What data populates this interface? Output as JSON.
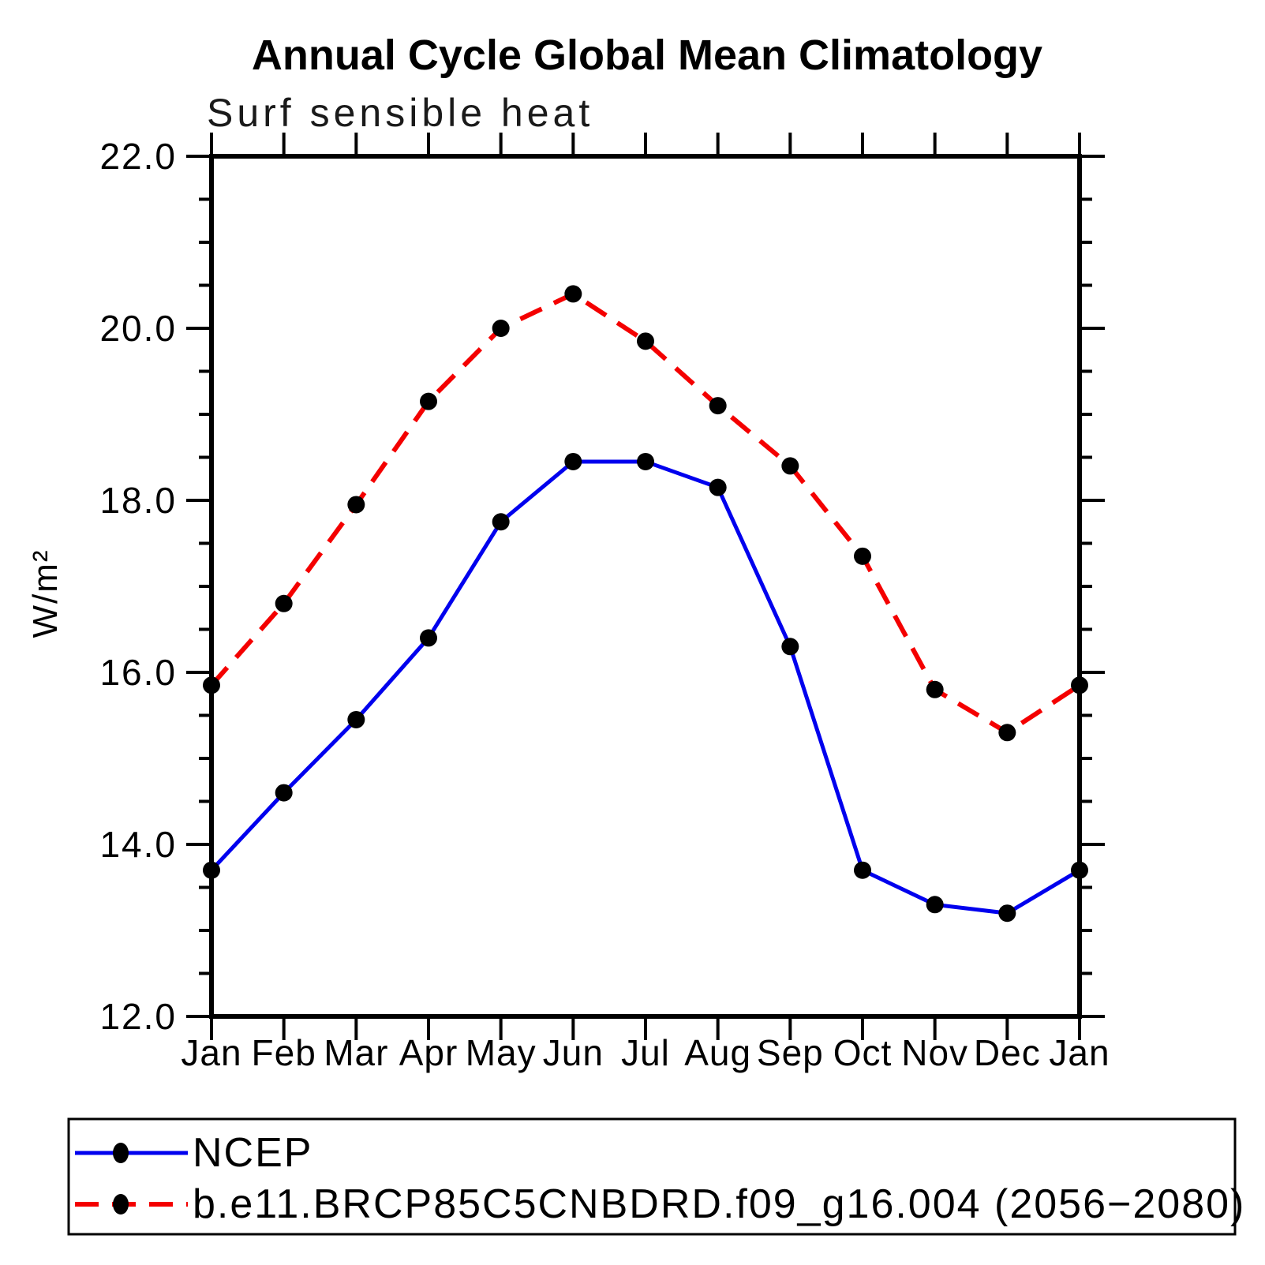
{
  "header": {
    "title": "Annual Cycle Global Mean Climatology",
    "subtitle": "Surf sensible heat"
  },
  "chart_data": {
    "type": "line",
    "title": "Annual Cycle Global Mean Climatology",
    "subtitle": "Surf sensible heat",
    "ylabel": "W/m²",
    "ylim": [
      12.0,
      22.0
    ],
    "ytick_major_interval": 2.0,
    "ytick_minor_interval": 0.5,
    "yticks": [
      {
        "value": 22.0,
        "label": "22.0"
      },
      {
        "value": 20.0,
        "label": "20.0"
      },
      {
        "value": 18.0,
        "label": "18.0"
      },
      {
        "value": 16.0,
        "label": "16.0"
      },
      {
        "value": 14.0,
        "label": "14.0"
      },
      {
        "value": 12.0,
        "label": "12.0"
      }
    ],
    "categories": [
      "Jan",
      "Feb",
      "Mar",
      "Apr",
      "May",
      "Jun",
      "Jul",
      "Aug",
      "Sep",
      "Oct",
      "Nov",
      "Dec",
      "Jan"
    ],
    "grid": "off",
    "legend_position": "bottom",
    "marker_color": "#000000",
    "series": [
      {
        "name": "NCEP",
        "color": "#0000ee",
        "style": "solid",
        "marker": "circle",
        "values": [
          13.7,
          14.6,
          15.45,
          16.4,
          17.75,
          18.45,
          18.45,
          18.15,
          16.3,
          13.7,
          13.3,
          13.2,
          13.7
        ]
      },
      {
        "name": "b.e11.BRCP85C5CNBDRD.f09_g16.004 (2056−2080)",
        "color": "#f40000",
        "style": "dashed",
        "marker": "circle",
        "values": [
          15.85,
          16.8,
          17.95,
          19.15,
          20.0,
          20.4,
          19.85,
          19.1,
          18.4,
          17.35,
          15.8,
          15.3,
          15.85
        ]
      }
    ]
  }
}
